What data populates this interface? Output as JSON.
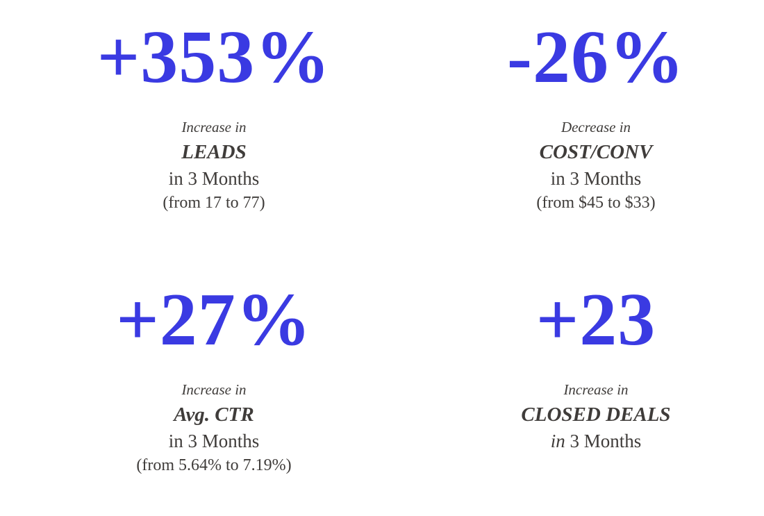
{
  "colors": {
    "accent_blue": "#3a3ae2",
    "text_dark": "#3f3c3a",
    "background": "#ffffff"
  },
  "cards": [
    {
      "value": "+353%",
      "qualifier": "Increase in",
      "metric": "LEADS",
      "duration_italic": "",
      "duration": "in 3 Months",
      "detail": "(from 17 to 77)"
    },
    {
      "value": "-26%",
      "qualifier": "Decrease in",
      "metric": "COST/CONV",
      "duration_italic": "",
      "duration": "in 3 Months",
      "detail": "(from $45 to $33)"
    },
    {
      "value": "+27%",
      "qualifier": "Increase in",
      "metric": "Avg. CTR",
      "duration_italic": "",
      "duration": "in 3 Months",
      "detail": "(from 5.64% to 7.19%)"
    },
    {
      "value": "+23",
      "qualifier": "Increase in",
      "metric": "CLOSED DEALS",
      "duration_italic": "in",
      "duration": " 3 Months",
      "detail": ""
    }
  ]
}
